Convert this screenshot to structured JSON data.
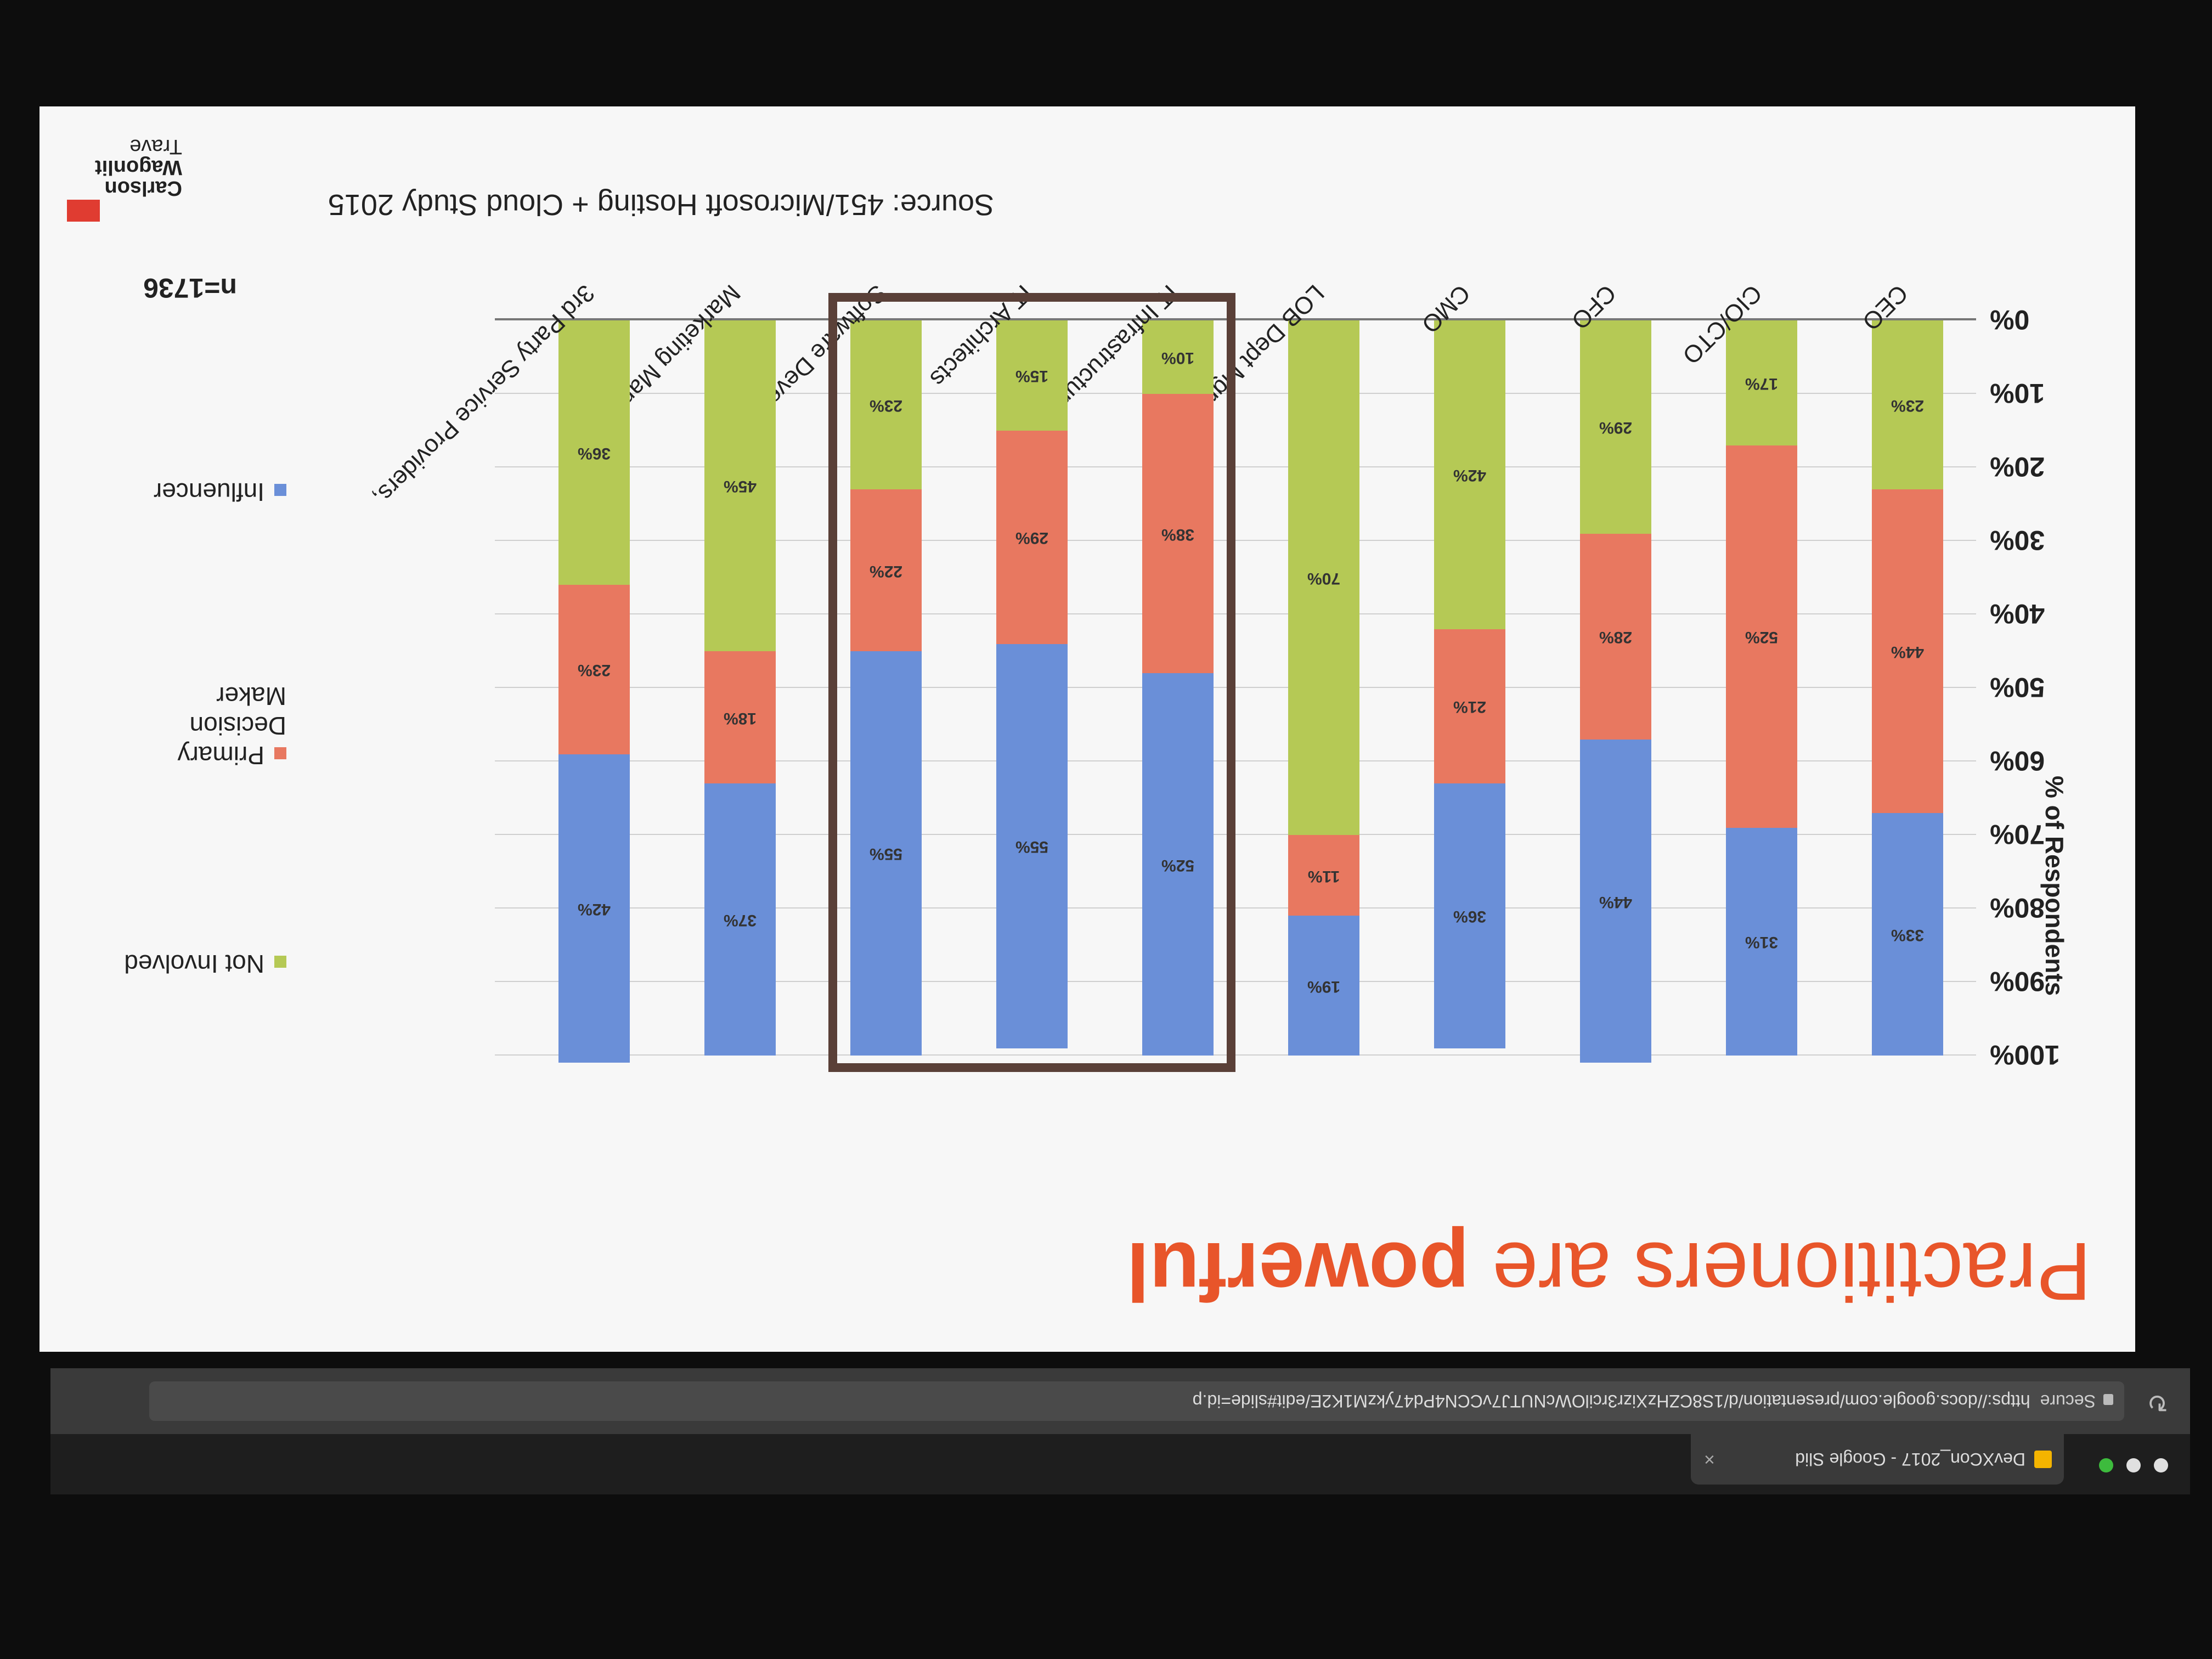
{
  "browser": {
    "tab_title": "DevXCon_2017 - Google Slid",
    "tab_close": "×",
    "security_label": "Secure",
    "url": "https://docs.google.com/presentation/d/1S8CZHzXizr3rcilOWcNUTJ7vCCN4Pd47ykzM1K2E/edit#slide=id.p"
  },
  "slide": {
    "title_prefix": "Practitioners are",
    "title_emphasis": "powerful",
    "logo_lines": [
      "Carlson",
      "Wagonlit",
      "Trave"
    ],
    "n_label": "n=1736",
    "source": "Source: 451/Microsoft Hosting + Cloud Study 2015"
  },
  "chart_data": {
    "type": "bar",
    "stacked": true,
    "orientation": "vertical",
    "ylabel": "% of Respondents",
    "ylim": [
      0,
      100
    ],
    "yticks": [
      "0%",
      "10%",
      "20%",
      "30%",
      "40%",
      "50%",
      "60%",
      "70%",
      "80%",
      "90%",
      "100%"
    ],
    "categories": [
      "CEO",
      "CIO/CTO",
      "CFO",
      "CMO",
      "LOB Dept Mgrs",
      "IT Infrastructure Mgrs",
      "IT Architects",
      "Software Developers",
      "Marketing Managers",
      "3rd Party Service Providers,"
    ],
    "series": [
      {
        "name": "Not Involved",
        "color": "#b5c955",
        "values": [
          23,
          17,
          29,
          42,
          70,
          10,
          15,
          23,
          45,
          36
        ],
        "labels": [
          "23%",
          "17%",
          "29%",
          "42%",
          "70%",
          "10%",
          "15%",
          "23%",
          "45%",
          "36%"
        ]
      },
      {
        "name": "Primary Decision Maker",
        "color": "#e87860",
        "values": [
          44,
          52,
          28,
          21,
          11,
          38,
          29,
          22,
          18,
          23
        ],
        "labels": [
          "44%",
          "52%",
          "28%",
          "21%",
          "11%",
          "38%",
          "29%",
          "22%",
          "18%",
          "23%"
        ]
      },
      {
        "name": "Influencer",
        "color": "#6a8fd8",
        "values": [
          33,
          31,
          44,
          36,
          19,
          52,
          55,
          55,
          37,
          42
        ],
        "labels": [
          "33%",
          "31%",
          "44%",
          "36%",
          "19%",
          "52%",
          "55%",
          "55%",
          "37%",
          "42%"
        ]
      }
    ],
    "legend": [
      "Not Involved",
      "Primary Decision Maker",
      "Influencer"
    ],
    "legend_position": "right",
    "grid": true,
    "highlighted_categories": [
      "IT Infrastructure Mgrs",
      "IT Architects",
      "Software Developers"
    ]
  }
}
